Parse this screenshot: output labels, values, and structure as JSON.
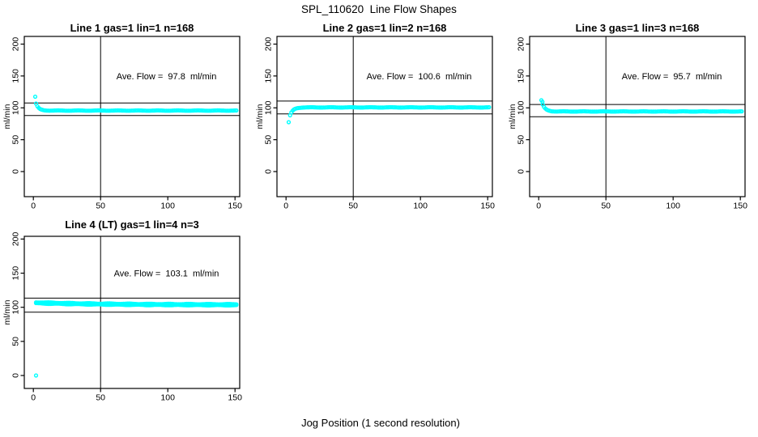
{
  "chart_data": {
    "type": "scatter",
    "title": "SPL_110620  Line Flow Shapes",
    "xlabel": "Jog Position (1 second resolution)",
    "ylabel": "ml/min",
    "grid_layout": "2 rows x 3 columns, 4 panels used",
    "x_ticks": [
      0,
      50,
      100,
      150
    ],
    "y_ticks": [
      0,
      50,
      100,
      150,
      200
    ],
    "xlim": [
      0,
      155
    ],
    "ylim": [
      0,
      200
    ],
    "marker": {
      "shape": "open-circle",
      "color": "#00FFFF"
    },
    "line_color": "#000000",
    "panels": [
      {
        "title": "Line 1 gas=1 lin=1 n=168",
        "n": 168,
        "ave_flow": 97.8,
        "annotation": "Ave. Flow =  97.8  ml/min",
        "vline_x": 50,
        "hline_upper": 107.6,
        "hline_lower": 88.0,
        "outlier_points": [
          [
            1.4,
            117.5
          ]
        ],
        "series": {
          "x_start": 2,
          "x_end": 151,
          "y_start": 106.5,
          "y_plateau": 95.7,
          "tau": 2.0,
          "jitter": 0.25,
          "offsets": [
            0
          ]
        }
      },
      {
        "title": "Line 2 gas=1 lin=2 n=168",
        "n": 168,
        "ave_flow": 100.6,
        "annotation": "Ave. Flow =  100.6  ml/min",
        "vline_x": 50,
        "hline_upper": 110.7,
        "hline_lower": 90.5,
        "outlier_points": [
          [
            2,
            77.5
          ]
        ],
        "series": {
          "x_start": 3,
          "x_end": 151,
          "y_start": 88,
          "y_plateau": 100.7,
          "tau": 2.2,
          "jitter": 0.25,
          "offsets": [
            0
          ]
        }
      },
      {
        "title": "Line 3 gas=1 lin=3 n=168",
        "n": 168,
        "ave_flow": 95.7,
        "annotation": "Ave. Flow =  95.7  ml/min",
        "vline_x": 50,
        "hline_upper": 105.3,
        "hline_lower": 86.1,
        "outlier_points": [
          [
            2,
            112
          ],
          [
            2.8,
            109.5
          ]
        ],
        "series": {
          "x_start": 3,
          "x_end": 151,
          "y_start": 105,
          "y_plateau": 94.3,
          "tau": 2.2,
          "jitter": 0.25,
          "offsets": [
            0
          ]
        }
      },
      {
        "title": "Line 4 (LT) gas=1 lin=4 n=3",
        "n": 3,
        "ave_flow": 103.1,
        "annotation": "Ave. Flow =  103.1  ml/min",
        "vline_x": 50,
        "hline_upper": 113.4,
        "hline_lower": 92.8,
        "outlier_points": [
          [
            2,
            0
          ]
        ],
        "series": {
          "x_start": 2,
          "x_end": 151,
          "y_start": 106.6,
          "y_plateau": 103.6,
          "tau": 50,
          "jitter": 0.35,
          "offsets": [
            -0.75,
            0,
            0.75
          ]
        }
      }
    ]
  }
}
